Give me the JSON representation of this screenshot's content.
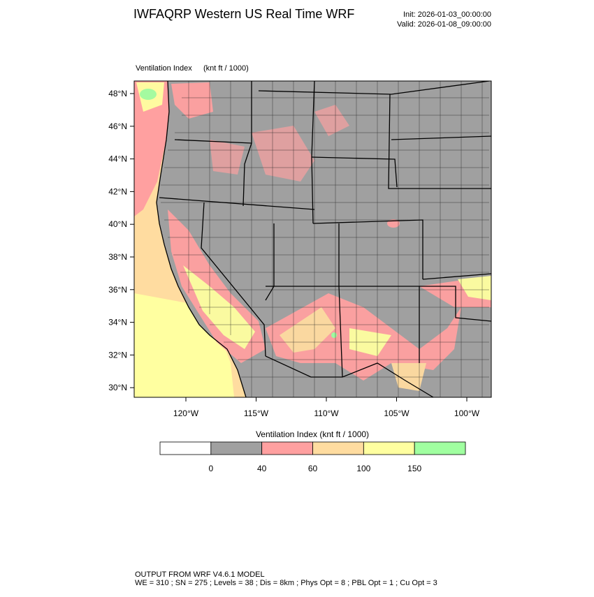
{
  "header": {
    "title": "IWFAQRP Western US Real Time WRF",
    "init": "Init: 2026-01-03_00:00:00",
    "valid": "Valid: 2026-01-08_09:00:00"
  },
  "map": {
    "field": "Ventilation Index",
    "units": "(knt ft / 1000)",
    "lat_labels": [
      "48°N",
      "46°N",
      "44°N",
      "42°N",
      "40°N",
      "38°N",
      "36°N",
      "34°N",
      "32°N",
      "30°N"
    ],
    "lon_labels": [
      "120°W",
      "115°W",
      "110°W",
      "105°W",
      "100°W"
    ]
  },
  "colorbar": {
    "label": "Ventilation Index   (knt ft / 1000)",
    "colors": [
      "#ffffff",
      "#a0a0a0",
      "#ffa0a0",
      "#ffdca0",
      "#ffffa0",
      "#a0ffa0"
    ],
    "labels": [
      "0",
      "40",
      "60",
      "100",
      "150"
    ]
  },
  "footer": {
    "line1": "OUTPUT FROM WRF V4.6.1 MODEL",
    "line2": "WE = 310 ; SN = 275 ; Levels = 38 ; Dis = 8km ; Phys Opt = 8 ; PBL Opt = 1 ; Cu Opt = 3"
  }
}
